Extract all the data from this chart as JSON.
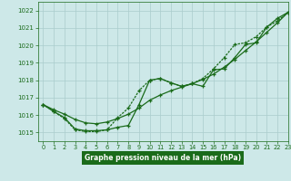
{
  "title": "Graphe pression niveau de la mer (hPa)",
  "bg_color": "#cde8e8",
  "grid_color": "#aacccc",
  "line_color": "#1a6b1a",
  "label_bg": "#1a6b1a",
  "xlim": [
    -0.5,
    23
  ],
  "ylim": [
    1014.5,
    1022.5
  ],
  "xticks": [
    0,
    1,
    2,
    3,
    4,
    5,
    6,
    7,
    8,
    9,
    10,
    11,
    12,
    13,
    14,
    15,
    16,
    17,
    18,
    19,
    20,
    21,
    22,
    23
  ],
  "yticks": [
    1015,
    1016,
    1017,
    1018,
    1019,
    1020,
    1021,
    1022
  ],
  "hours": [
    0,
    1,
    2,
    3,
    4,
    5,
    6,
    7,
    8,
    9,
    10,
    11,
    12,
    13,
    14,
    15,
    16,
    17,
    18,
    19,
    20,
    21,
    22,
    23
  ],
  "line_straight": [
    1016.6,
    1016.3,
    1016.05,
    1015.75,
    1015.55,
    1015.5,
    1015.6,
    1015.8,
    1016.05,
    1016.4,
    1016.85,
    1017.15,
    1017.4,
    1017.6,
    1017.8,
    1018.05,
    1018.35,
    1018.75,
    1019.2,
    1019.7,
    1020.2,
    1020.75,
    1021.3,
    1021.9
  ],
  "line_wavy": [
    1016.6,
    1016.2,
    1015.85,
    1015.2,
    1015.1,
    1015.1,
    1015.15,
    1015.3,
    1015.4,
    1016.6,
    1018.0,
    1018.1,
    1017.85,
    1017.65,
    1017.8,
    1017.65,
    1018.6,
    1018.65,
    1019.3,
    1020.05,
    1020.15,
    1021.05,
    1021.55,
    1021.9
  ],
  "line_dip": [
    1016.6,
    1016.2,
    1015.8,
    1015.15,
    1015.05,
    1015.05,
    1015.15,
    1015.85,
    1016.4,
    1017.4,
    1018.0,
    1018.1,
    1017.85,
    1017.65,
    1017.8,
    1018.1,
    1018.65,
    1019.3,
    1020.05,
    1020.15,
    1020.5,
    1021.05,
    1021.4,
    1021.9
  ]
}
